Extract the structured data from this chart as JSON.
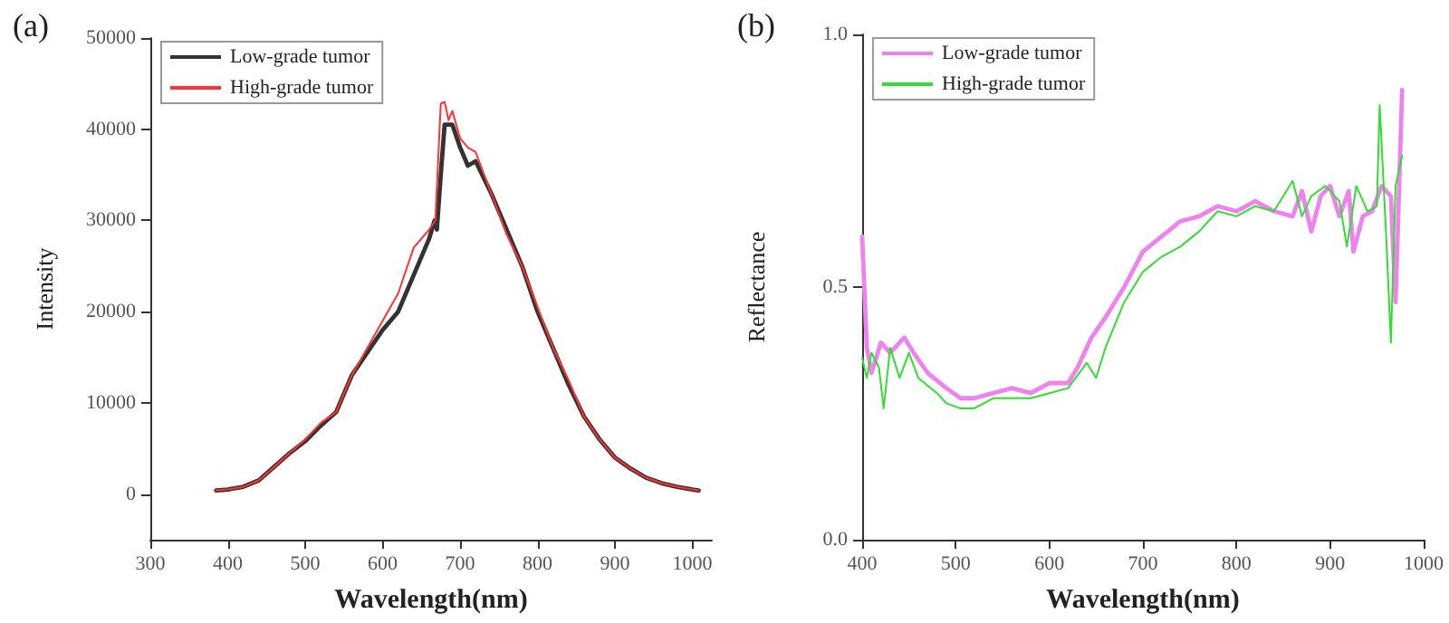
{
  "chart_data": [
    {
      "type": "line",
      "title": "(a)",
      "xlabel": "Wavelength(nm)",
      "ylabel": "Intensity",
      "xlim": [
        300,
        1025
      ],
      "xticks": [
        300,
        400,
        500,
        600,
        700,
        800,
        900,
        1000
      ],
      "ylim": [
        -5000,
        50000
      ],
      "yticks": [
        0,
        10000,
        20000,
        30000,
        40000,
        50000
      ],
      "grid": false,
      "legend": "top left",
      "marker": "none",
      "line_style": "solid",
      "series": [
        {
          "name": "Low-grade tumor",
          "color": "#333333",
          "x": [
            385,
            400,
            420,
            440,
            460,
            480,
            500,
            520,
            540,
            560,
            580,
            600,
            620,
            640,
            660,
            667,
            670,
            675,
            680,
            690,
            700,
            710,
            720,
            740,
            760,
            780,
            800,
            820,
            840,
            860,
            880,
            900,
            920,
            940,
            960,
            980,
            1000,
            1008
          ],
          "values": [
            400,
            500,
            800,
            1500,
            3000,
            4500,
            5800,
            7500,
            9000,
            13000,
            15500,
            18000,
            20000,
            24000,
            28000,
            30000,
            29000,
            35000,
            40500,
            40500,
            38000,
            36000,
            36500,
            33000,
            29000,
            25000,
            20000,
            16000,
            12000,
            8500,
            6000,
            4000,
            2800,
            1800,
            1200,
            800,
            500,
            400
          ]
        },
        {
          "name": "High-grade tumor",
          "color": "#ff3333",
          "x": [
            385,
            400,
            420,
            440,
            460,
            480,
            500,
            520,
            540,
            560,
            580,
            600,
            620,
            640,
            660,
            668,
            675,
            680,
            685,
            690,
            700,
            710,
            720,
            740,
            760,
            780,
            800,
            820,
            840,
            860,
            880,
            900,
            920,
            940,
            960,
            980,
            1000,
            1008
          ],
          "values": [
            400,
            500,
            800,
            1500,
            3000,
            4500,
            6000,
            7800,
            9000,
            13000,
            16000,
            19000,
            22000,
            27000,
            29000,
            30000,
            42800,
            43000,
            41000,
            42000,
            39000,
            38000,
            37500,
            33000,
            28500,
            25000,
            20500,
            16000,
            12500,
            8500,
            6000,
            4000,
            2800,
            1800,
            1200,
            800,
            500,
            400
          ]
        }
      ]
    },
    {
      "type": "line",
      "title": "(b)",
      "xlabel": "Wavelength(nm)",
      "ylabel": "Reflectance",
      "xlim": [
        400,
        1000
      ],
      "xticks": [
        400,
        500,
        600,
        700,
        800,
        900,
        1000
      ],
      "ylim": [
        0,
        1
      ],
      "yticks": [
        {
          "value": 0,
          "label": "0.0"
        },
        {
          "value": 0.5,
          "label": "0.5"
        },
        {
          "value": 1,
          "label": "1.0"
        }
      ],
      "grid": false,
      "legend": "top left",
      "marker": "none",
      "line_style": "solid",
      "series": [
        {
          "name": "Low-grade tumor",
          "color": "#ee82ee",
          "x": [
            400,
            405,
            410,
            420,
            430,
            445,
            455,
            470,
            490,
            505,
            520,
            540,
            560,
            580,
            600,
            620,
            630,
            645,
            660,
            680,
            700,
            720,
            740,
            760,
            780,
            800,
            820,
            840,
            860,
            870,
            880,
            890,
            900,
            910,
            920,
            925,
            935,
            945,
            955,
            965,
            970,
            977
          ],
          "values": [
            0.6,
            0.38,
            0.33,
            0.39,
            0.37,
            0.4,
            0.37,
            0.33,
            0.3,
            0.28,
            0.28,
            0.29,
            0.3,
            0.29,
            0.31,
            0.31,
            0.34,
            0.4,
            0.44,
            0.5,
            0.57,
            0.6,
            0.63,
            0.64,
            0.66,
            0.65,
            0.67,
            0.65,
            0.64,
            0.69,
            0.61,
            0.68,
            0.7,
            0.64,
            0.69,
            0.57,
            0.64,
            0.65,
            0.7,
            0.68,
            0.47,
            0.89
          ]
        },
        {
          "name": "High-grade tumor",
          "color": "#33dd33",
          "x": [
            400,
            405,
            410,
            418,
            423,
            430,
            440,
            450,
            460,
            480,
            490,
            505,
            520,
            540,
            560,
            580,
            600,
            620,
            640,
            650,
            660,
            680,
            700,
            720,
            740,
            760,
            780,
            800,
            820,
            840,
            860,
            870,
            880,
            895,
            910,
            918,
            928,
            940,
            950,
            953,
            960,
            965,
            970,
            977
          ],
          "values": [
            0.36,
            0.32,
            0.37,
            0.34,
            0.26,
            0.38,
            0.32,
            0.37,
            0.32,
            0.29,
            0.27,
            0.26,
            0.26,
            0.28,
            0.28,
            0.28,
            0.29,
            0.3,
            0.35,
            0.32,
            0.38,
            0.47,
            0.53,
            0.56,
            0.58,
            0.61,
            0.65,
            0.64,
            0.66,
            0.65,
            0.71,
            0.64,
            0.68,
            0.7,
            0.67,
            0.58,
            0.7,
            0.65,
            0.66,
            0.86,
            0.6,
            0.39,
            0.7,
            0.76
          ]
        }
      ]
    }
  ]
}
